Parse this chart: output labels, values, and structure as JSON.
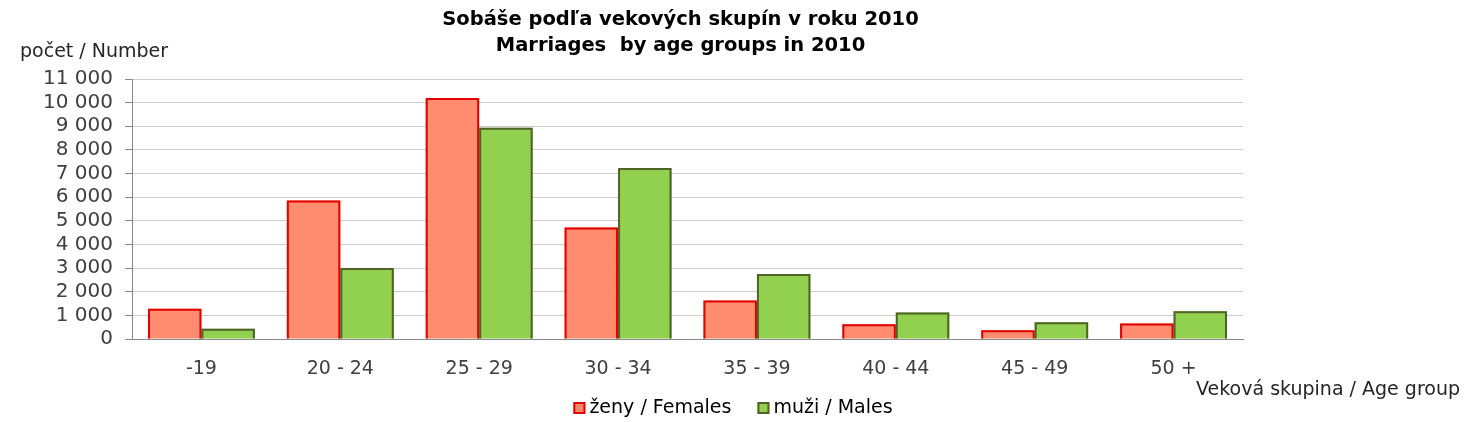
{
  "chart_data": {
    "type": "bar",
    "title": "Sobáše podľa vekových skupín v roku 2010",
    "subtitle": "Marriages  by age groups in 2010",
    "ylabel": "počet / Number",
    "xlabel": "Veková skupina / Age group",
    "categories": [
      "-19",
      "20 - 24",
      "25 - 29",
      "30 - 34",
      "35 - 39",
      "40 - 44",
      "45 - 49",
      "50 +"
    ],
    "series": [
      {
        "name": "ženy / Females",
        "color": "#ff8c6e",
        "values": [
          1280,
          5860,
          10200,
          4720,
          1630,
          620,
          370,
          660
        ]
      },
      {
        "name": "muži / Males",
        "color": "#92d050",
        "values": [
          430,
          3000,
          8940,
          7230,
          2750,
          1120,
          710,
          1170
        ]
      }
    ],
    "ylim": [
      0,
      11000
    ],
    "yticks": [
      0,
      {
        "value": 1000,
        "label": "1 000"
      },
      {
        "value": 2000,
        "label": "2 000"
      },
      {
        "value": 3000,
        "label": "3 000"
      },
      {
        "value": 4000,
        "label": "4 000"
      },
      {
        "value": 5000,
        "label": "5 000"
      },
      {
        "value": 6000,
        "label": "6 000"
      },
      {
        "value": 7000,
        "label": "7 000"
      },
      {
        "value": 8000,
        "label": "8 000"
      },
      {
        "value": 9000,
        "label": "9 000"
      },
      {
        "value": 10000,
        "label": "10 000"
      },
      {
        "value": 11000,
        "label": "11 000"
      }
    ],
    "grid": "y",
    "legend": "bottom"
  }
}
